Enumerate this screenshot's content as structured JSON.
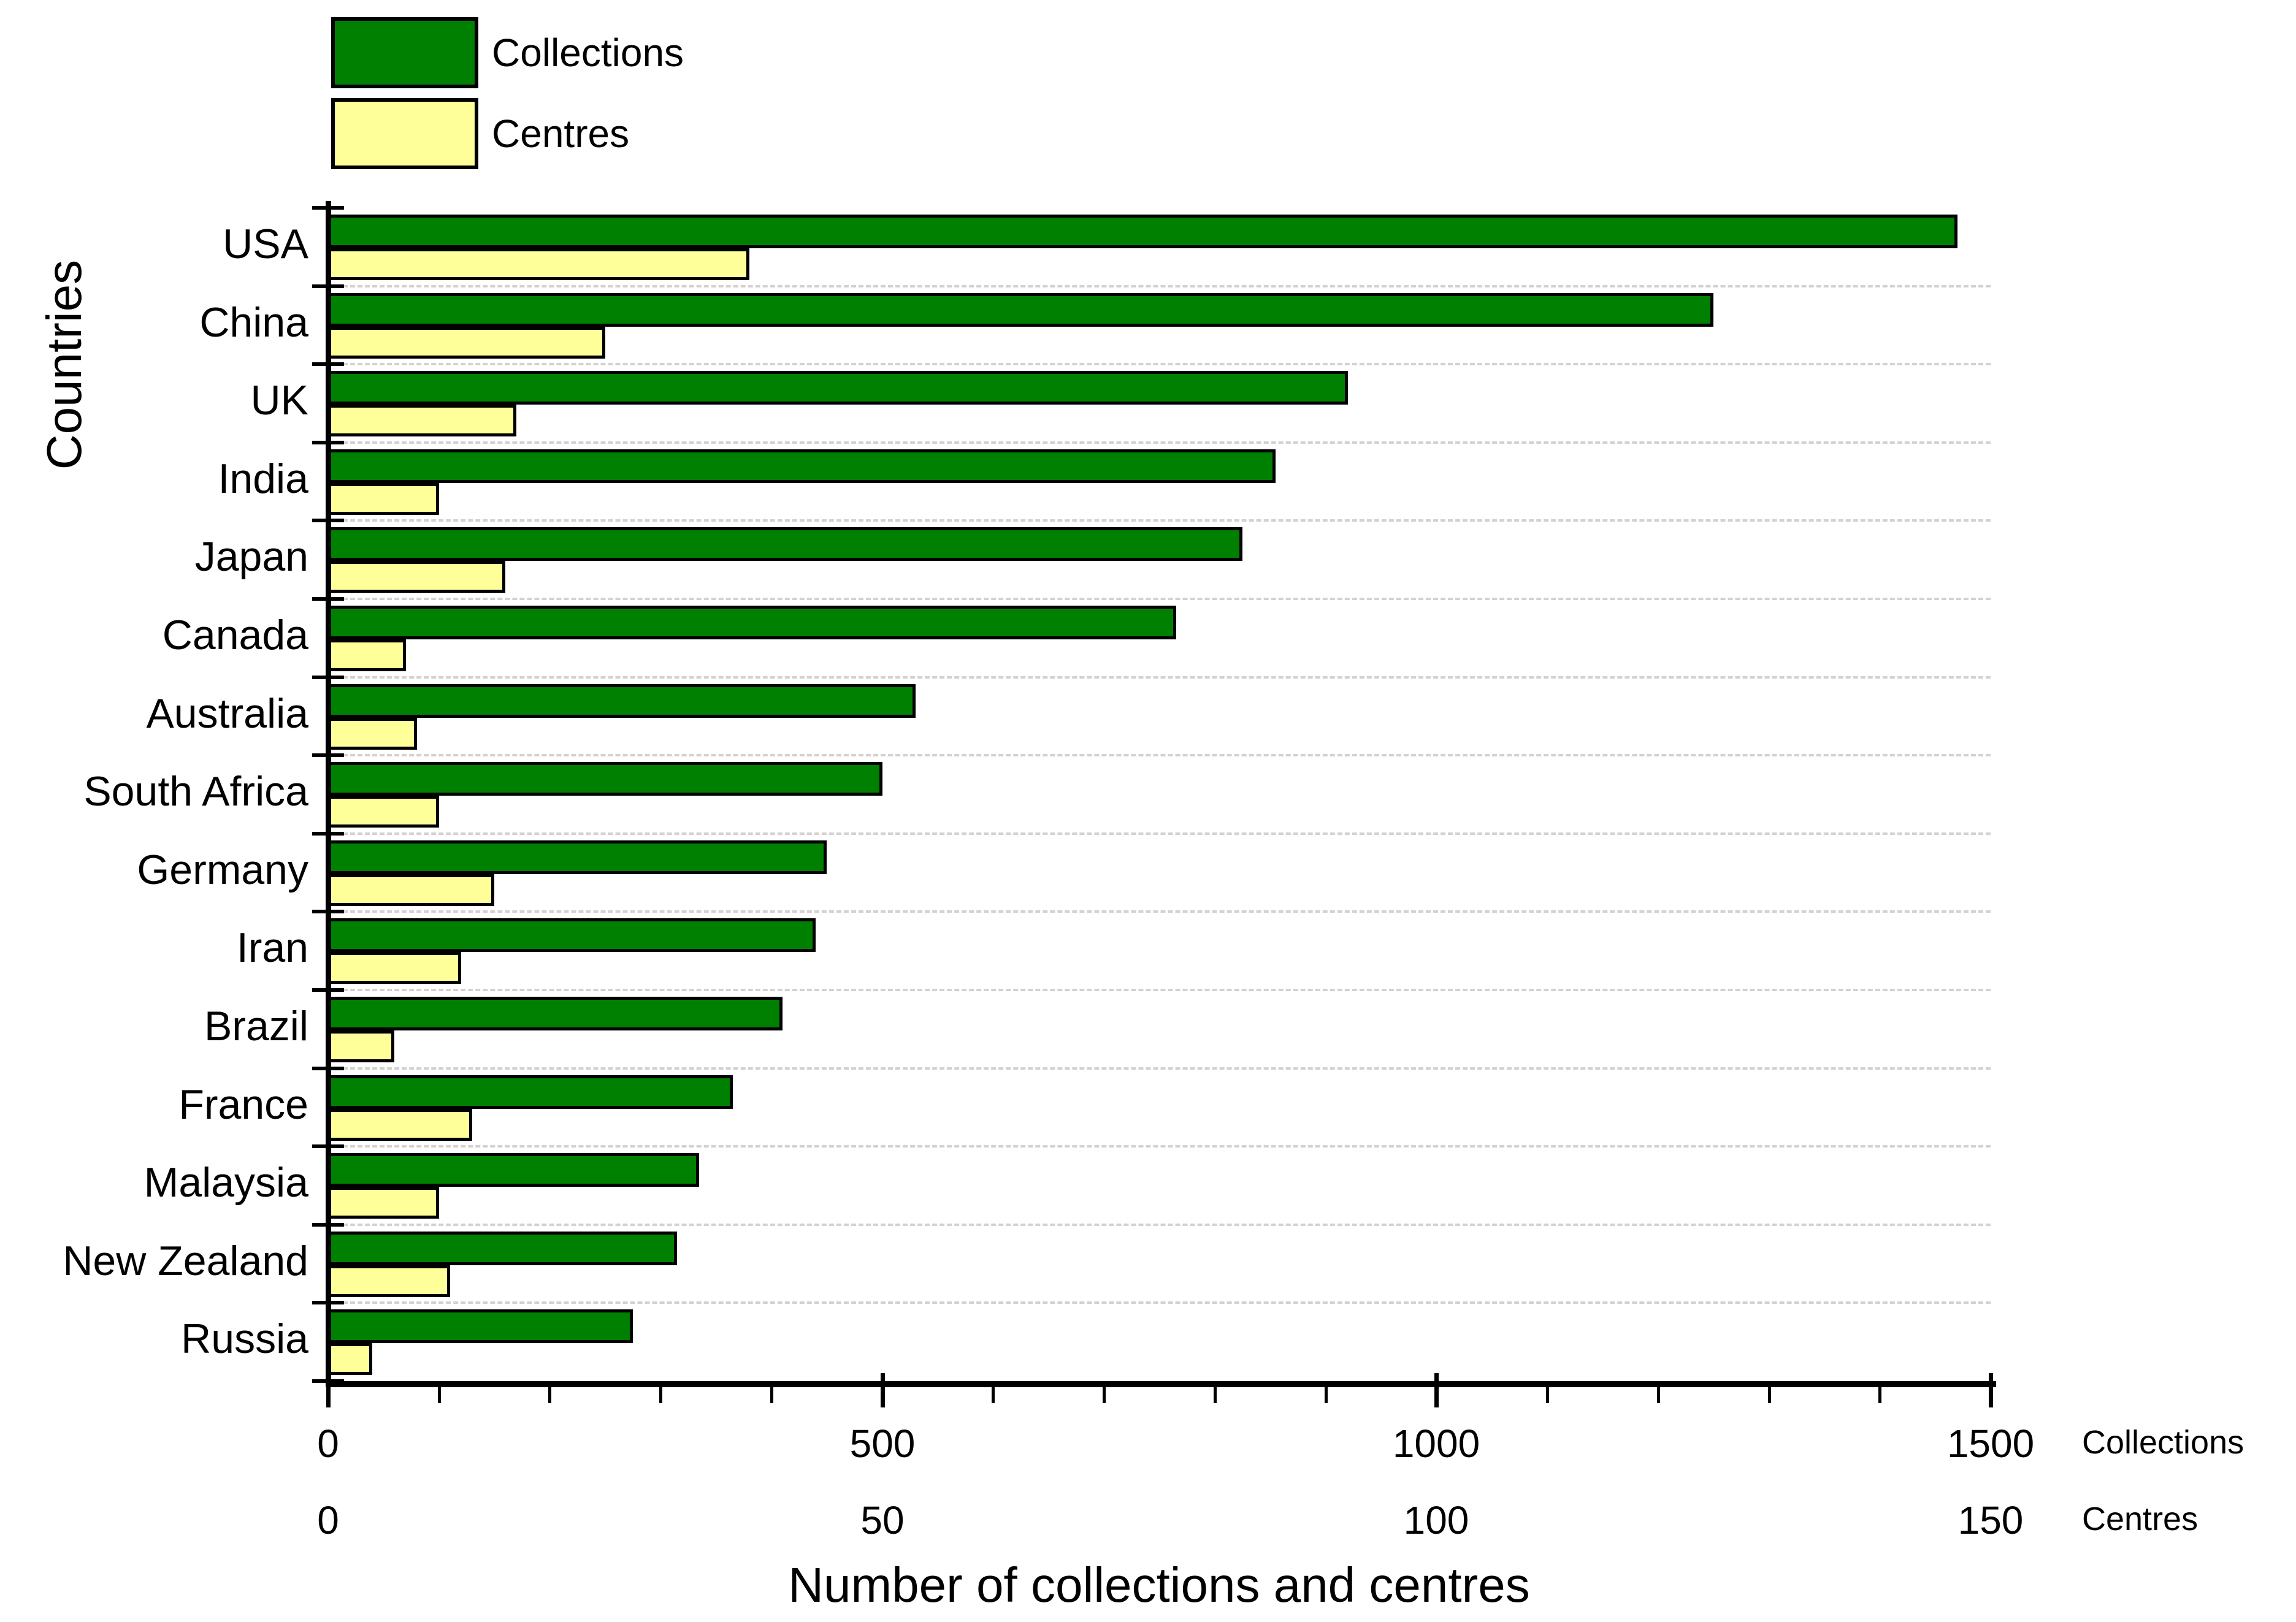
{
  "chart_data": {
    "type": "bar",
    "orientation": "horizontal",
    "xlabel": "Number of collections and centres",
    "ylabel": "Countries",
    "categories": [
      "USA",
      "China",
      "UK",
      "India",
      "Japan",
      "Canada",
      "Australia",
      "South Africa",
      "Germany",
      "Iran",
      "Brazil",
      "France",
      "Malaysia",
      "New Zealand",
      "Russia"
    ],
    "series": [
      {
        "name": "Collections",
        "color": "#008000",
        "axis_min": 0,
        "axis_max": 1500,
        "ticks": [
          0,
          500,
          1000,
          1500
        ],
        "values": [
          1470,
          1250,
          920,
          855,
          825,
          765,
          530,
          500,
          450,
          440,
          410,
          365,
          335,
          315,
          275
        ]
      },
      {
        "name": "Centres",
        "color": "#ffff99",
        "axis_min": 0,
        "axis_max": 150,
        "ticks": [
          0,
          50,
          100,
          150
        ],
        "values": [
          38,
          25,
          17,
          10,
          16,
          7,
          8,
          10,
          15,
          12,
          6,
          13,
          10,
          11,
          4
        ]
      }
    ],
    "grid": "horizontal-dashed-between-categories",
    "legend_position": "top-left"
  },
  "legend": {
    "items": [
      {
        "label": "Collections",
        "color": "#008000"
      },
      {
        "label": "Centres",
        "color": "#ffff99"
      }
    ]
  },
  "x_axis": {
    "collections_tick_labels": [
      "0",
      "500",
      "1000",
      "1500"
    ],
    "centres_tick_labels": [
      "0",
      "50",
      "100",
      "150"
    ],
    "collections_row_label": "Collections",
    "centres_row_label": "Centres",
    "title": "Number of collections and centres"
  },
  "y_axis": {
    "title": "Countries"
  },
  "colors": {
    "collections_bar": "#008000",
    "centres_bar": "#ffff99",
    "bar_border": "#000000",
    "gridline": "#d6d0d0",
    "axis": "#000000",
    "background": "#ffffff",
    "text": "#000000"
  }
}
